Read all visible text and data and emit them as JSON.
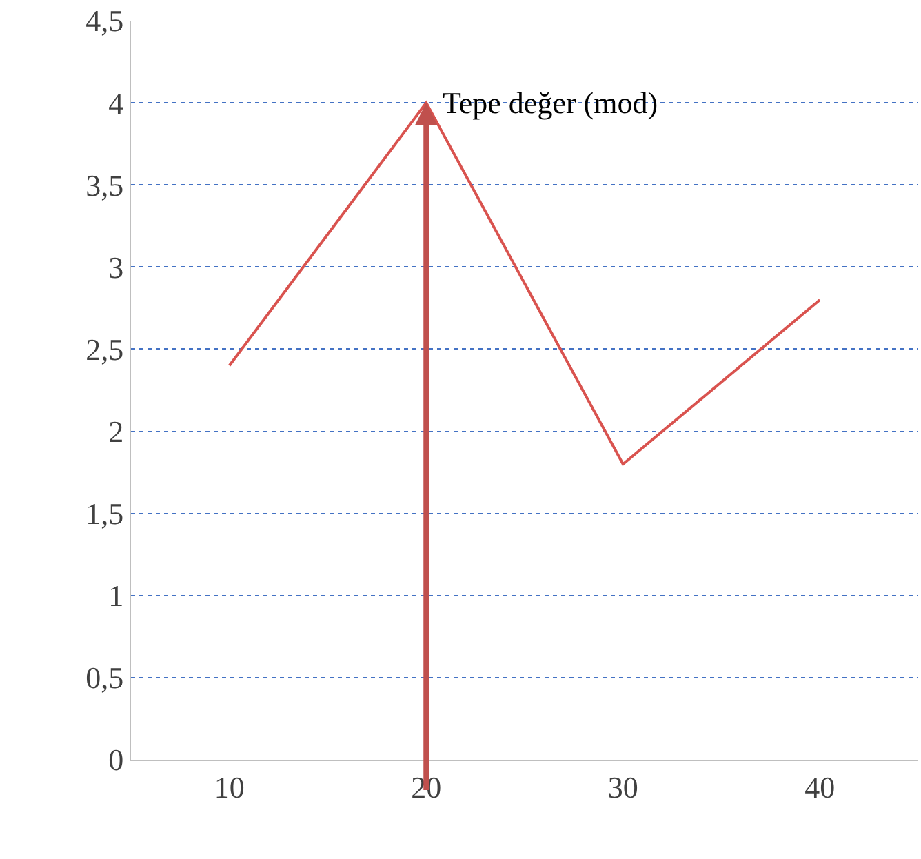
{
  "chart_data": {
    "type": "line",
    "categories": [
      "10",
      "20",
      "30",
      "40"
    ],
    "series": [
      {
        "color": "#d9534f",
        "values": [
          2.4,
          4.0,
          1.8,
          2.8
        ]
      }
    ],
    "ylim": [
      0,
      4.5
    ],
    "yticks": [
      0,
      {
        "value": 0.5,
        "label": "0,5"
      },
      1,
      {
        "value": 1.5,
        "label": "1,5"
      },
      2,
      {
        "value": 2.5,
        "label": "2,5"
      },
      3,
      {
        "value": 3.5,
        "label": "3,5"
      },
      4,
      {
        "value": 4.5,
        "label": "4,5"
      }
    ],
    "grid": "y",
    "marker": "none",
    "line_style": "solid",
    "legend": false,
    "ref_lines": [
      {
        "axis": "x",
        "value": "20",
        "label": "Tepe değer (mod)",
        "color": "#c0504d"
      }
    ]
  }
}
